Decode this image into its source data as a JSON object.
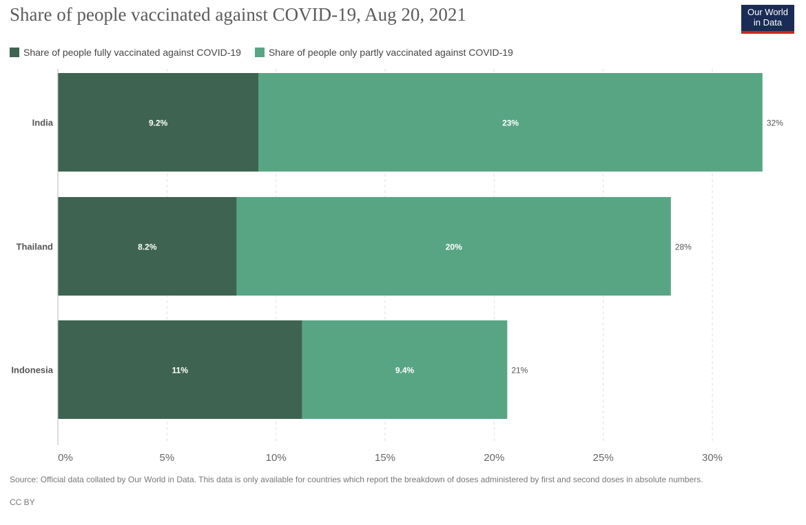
{
  "chart_data": {
    "type": "bar",
    "orientation": "horizontal",
    "stacked": true,
    "title": "Share of people vaccinated against COVID-19, Aug 20, 2021",
    "categories": [
      "India",
      "Thailand",
      "Indonesia"
    ],
    "series": [
      {
        "name": "Share of people fully vaccinated against COVID-19",
        "color": "#3e6451",
        "values": [
          9.2,
          8.2,
          11.2
        ],
        "labels": [
          "9.2%",
          "8.2%",
          "11%"
        ]
      },
      {
        "name": "Share of people only partly vaccinated against COVID-19",
        "color": "#58a584",
        "values": [
          23.1,
          19.9,
          9.4
        ],
        "labels": [
          "23%",
          "20%",
          "9.4%"
        ]
      }
    ],
    "totals": [
      "32%",
      "28%",
      "21%"
    ],
    "xlim": [
      0,
      33
    ],
    "xticks": [
      0,
      5,
      10,
      15,
      20,
      25,
      30
    ],
    "xtick_labels": [
      "0%",
      "5%",
      "10%",
      "15%",
      "20%",
      "25%",
      "30%"
    ],
    "grid": true,
    "legend_position": "top-left"
  },
  "logo": {
    "line1": "Our World",
    "line2": "in Data"
  },
  "source": "Source: Official data collated by Our World in Data. This data is only available for countries which report the breakdown of doses administered by first and second doses in absolute numbers.",
  "license": "CC BY"
}
